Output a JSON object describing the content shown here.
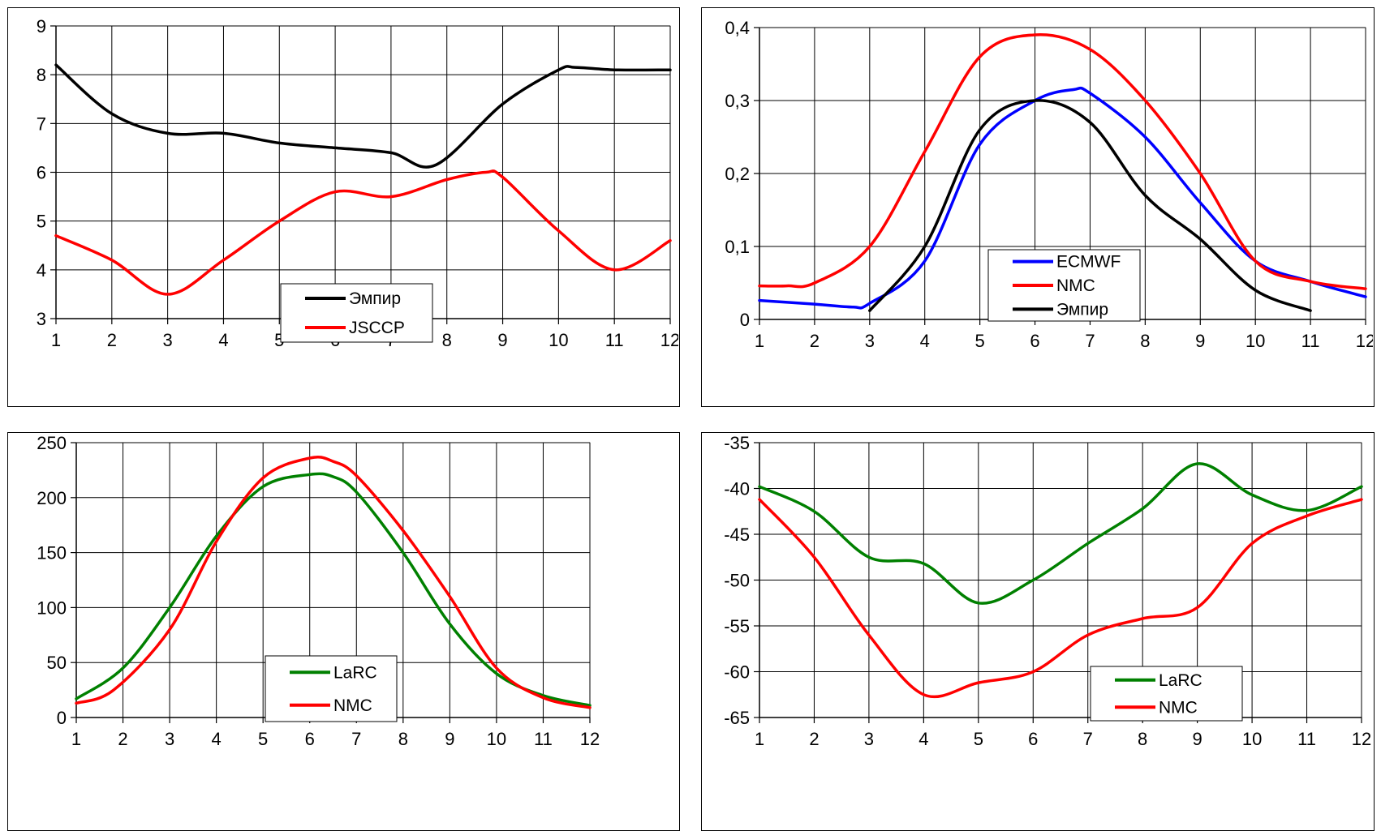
{
  "chart_data": [
    {
      "type": "line",
      "x": [
        1,
        2,
        3,
        4,
        5,
        6,
        7,
        8,
        9,
        10,
        11,
        12
      ],
      "x_ticks": [
        "1",
        "2",
        "3",
        "4",
        "5",
        "6",
        "7",
        "8",
        "9",
        "10",
        "11",
        "12"
      ],
      "xlim": [
        1,
        12
      ],
      "ylim": [
        3,
        9
      ],
      "y_ticks": [
        "3",
        "4",
        "5",
        "6",
        "7",
        "8",
        "9"
      ],
      "grid": true,
      "legend_position": "bottom-center",
      "series": [
        {
          "name": "Эмпир",
          "color": "#000000",
          "points": [
            [
              1,
              8.2
            ],
            [
              2,
              7.2
            ],
            [
              3,
              6.8
            ],
            [
              4,
              6.8
            ],
            [
              5,
              6.6
            ],
            [
              6,
              6.5
            ],
            [
              7,
              6.4
            ],
            [
              7.8,
              6.15
            ],
            [
              9,
              7.4
            ],
            [
              10,
              8.1
            ],
            [
              10.3,
              8.15
            ],
            [
              11,
              8.1
            ],
            [
              12,
              8.1
            ]
          ]
        },
        {
          "name": "JSCCP",
          "color": "#ff0000",
          "points": [
            [
              1,
              4.7
            ],
            [
              2,
              4.2
            ],
            [
              3,
              3.5
            ],
            [
              4,
              4.2
            ],
            [
              5,
              5.0
            ],
            [
              6,
              5.6
            ],
            [
              7,
              5.5
            ],
            [
              8,
              5.85
            ],
            [
              8.7,
              6.0
            ],
            [
              9,
              5.9
            ],
            [
              10,
              4.8
            ],
            [
              11,
              4.0
            ],
            [
              12,
              4.6
            ]
          ]
        }
      ]
    },
    {
      "type": "line",
      "x": [
        1,
        2,
        3,
        4,
        5,
        6,
        7,
        8,
        9,
        10,
        11,
        12
      ],
      "x_ticks": [
        "1",
        "2",
        "3",
        "4",
        "5",
        "6",
        "7",
        "8",
        "9",
        "10",
        "11",
        "12"
      ],
      "xlim": [
        1,
        12
      ],
      "ylim": [
        0,
        0.4
      ],
      "y_ticks": [
        "0",
        "0,1",
        "0,2",
        "0,3",
        "0,4"
      ],
      "grid": true,
      "legend_position": "bottom-center",
      "series": [
        {
          "name": "ECMWF",
          "color": "#0000ff",
          "points": [
            [
              1,
              0.026
            ],
            [
              2,
              0.021
            ],
            [
              2.7,
              0.017
            ],
            [
              3,
              0.022
            ],
            [
              4,
              0.08
            ],
            [
              5,
              0.24
            ],
            [
              6,
              0.3
            ],
            [
              6.7,
              0.315
            ],
            [
              7,
              0.31
            ],
            [
              8,
              0.25
            ],
            [
              9,
              0.16
            ],
            [
              10,
              0.08
            ],
            [
              11,
              0.052
            ],
            [
              12,
              0.031
            ]
          ]
        },
        {
          "name": "NMC",
          "color": "#ff0000",
          "points": [
            [
              1,
              0.046
            ],
            [
              1.5,
              0.046
            ],
            [
              2,
              0.05
            ],
            [
              3,
              0.1
            ],
            [
              4,
              0.23
            ],
            [
              5,
              0.36
            ],
            [
              6,
              0.39
            ],
            [
              7,
              0.37
            ],
            [
              8,
              0.3
            ],
            [
              9,
              0.2
            ],
            [
              10,
              0.08
            ],
            [
              11,
              0.052
            ],
            [
              12,
              0.042
            ]
          ]
        },
        {
          "name": "Эмпир",
          "color": "#000000",
          "points": [
            [
              3,
              0.012
            ],
            [
              4,
              0.1
            ],
            [
              5,
              0.26
            ],
            [
              6,
              0.3
            ],
            [
              7,
              0.27
            ],
            [
              8,
              0.17
            ],
            [
              9,
              0.11
            ],
            [
              10,
              0.04
            ],
            [
              11,
              0.012
            ]
          ]
        }
      ]
    },
    {
      "type": "line",
      "x": [
        1,
        2,
        3,
        4,
        5,
        6,
        7,
        8,
        9,
        10,
        11,
        12
      ],
      "x_ticks": [
        "1",
        "2",
        "3",
        "4",
        "5",
        "6",
        "7",
        "8",
        "9",
        "10",
        "11",
        "12"
      ],
      "xlim": [
        1,
        12
      ],
      "ylim": [
        0,
        250
      ],
      "y_ticks": [
        "0",
        "50",
        "100",
        "150",
        "200",
        "250"
      ],
      "grid": true,
      "legend_position": "bottom-center",
      "series": [
        {
          "name": "LaRC",
          "color": "#008000",
          "points": [
            [
              1,
              17
            ],
            [
              2,
              45
            ],
            [
              3,
              100
            ],
            [
              4,
              165
            ],
            [
              5,
              210
            ],
            [
              6,
              221
            ],
            [
              6.5,
              219
            ],
            [
              7,
              205
            ],
            [
              8,
              150
            ],
            [
              9,
              85
            ],
            [
              10,
              40
            ],
            [
              11,
              20
            ],
            [
              12,
              11
            ]
          ]
        },
        {
          "name": "NMC",
          "color": "#ff0000",
          "points": [
            [
              1,
              13
            ],
            [
              1.8,
              25
            ],
            [
              3,
              80
            ],
            [
              4,
              160
            ],
            [
              5,
              218
            ],
            [
              6,
              236
            ],
            [
              6.5,
              233
            ],
            [
              7,
              220
            ],
            [
              8,
              170
            ],
            [
              9,
              110
            ],
            [
              10,
              45
            ],
            [
              11,
              18
            ],
            [
              12,
              9
            ]
          ]
        }
      ]
    },
    {
      "type": "line",
      "x": [
        1,
        2,
        3,
        4,
        5,
        6,
        7,
        8,
        9,
        10,
        11,
        12
      ],
      "x_ticks": [
        "1",
        "2",
        "3",
        "4",
        "5",
        "6",
        "7",
        "8",
        "9",
        "10",
        "11",
        "12"
      ],
      "xlim": [
        1,
        12
      ],
      "ylim": [
        -65,
        -35
      ],
      "y_ticks": [
        "-65",
        "-60",
        "-55",
        "-50",
        "-45",
        "-40",
        "-35"
      ],
      "grid": true,
      "legend_position": "bottom-right",
      "series": [
        {
          "name": "LaRC",
          "color": "#008000",
          "points": [
            [
              1,
              -39.8
            ],
            [
              2,
              -42.5
            ],
            [
              3,
              -47.5
            ],
            [
              4,
              -48.2
            ],
            [
              5,
              -52.5
            ],
            [
              6,
              -50
            ],
            [
              7,
              -46
            ],
            [
              8,
              -42.2
            ],
            [
              9,
              -37.3
            ],
            [
              10,
              -40.7
            ],
            [
              11,
              -42.4
            ],
            [
              12,
              -39.8
            ]
          ]
        },
        {
          "name": "NMC",
          "color": "#ff0000",
          "points": [
            [
              1,
              -41.2
            ],
            [
              2,
              -47.5
            ],
            [
              3,
              -56
            ],
            [
              4,
              -62.5
            ],
            [
              5,
              -61.2
            ],
            [
              6,
              -60
            ],
            [
              7,
              -56
            ],
            [
              8,
              -54.2
            ],
            [
              9,
              -53
            ],
            [
              10,
              -46
            ],
            [
              11,
              -43
            ],
            [
              12,
              -41.2
            ]
          ]
        }
      ]
    }
  ]
}
